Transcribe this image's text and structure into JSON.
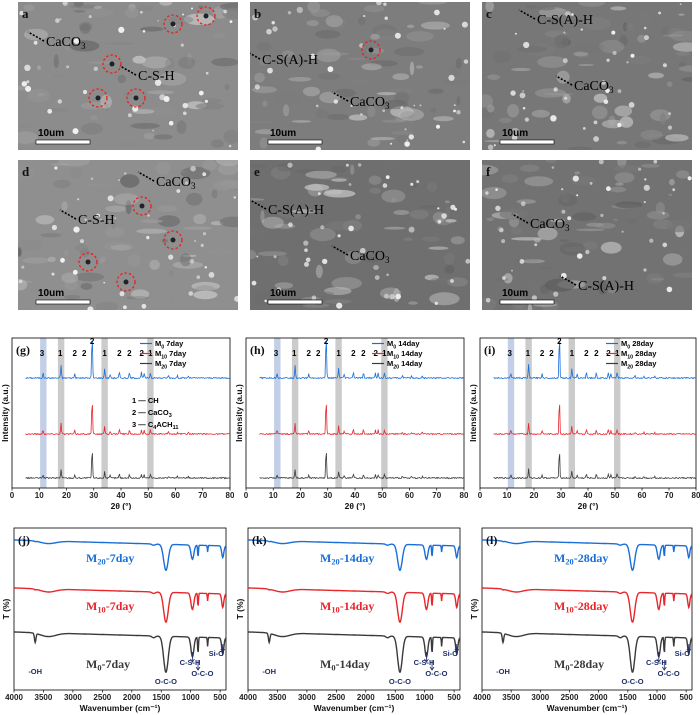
{
  "sem": [
    {
      "letter": "a",
      "scale": "10um",
      "labels": [
        "CaCO3",
        "C-S-H"
      ]
    },
    {
      "letter": "b",
      "scale": "10um",
      "labels": [
        "C-S(A)-H",
        "CaCO3"
      ]
    },
    {
      "letter": "c",
      "scale": "10um",
      "labels": [
        "C-S(A)-H",
        "CaCO3"
      ]
    },
    {
      "letter": "d",
      "scale": "10um",
      "labels": [
        "C-S-H",
        "CaCO3"
      ]
    },
    {
      "letter": "e",
      "scale": "10um",
      "labels": [
        "C-S(A)-H",
        "CaCO3"
      ]
    },
    {
      "letter": "f",
      "scale": "10um",
      "labels": [
        "CaCO3",
        "C-S(A)-H"
      ]
    }
  ],
  "colors": {
    "m0": "#1a6ed8",
    "m10": "#e8262b",
    "m20": "#3a3a3a",
    "band_blue": "#b7c7e3",
    "band_gray": "#c2c2c2"
  },
  "xrd": {
    "xlabel": "2θ (°)",
    "ylabel": "Intensity (a.u.)",
    "xlim": [
      0,
      80
    ],
    "xticks": [
      0,
      10,
      20,
      30,
      40,
      50,
      60,
      70,
      80
    ],
    "bands": [
      {
        "x": 11.5,
        "tone": "blue"
      },
      {
        "x": 18.0,
        "tone": "gray"
      },
      {
        "x": 34.0,
        "tone": "gray"
      },
      {
        "x": 50.8,
        "tone": "gray"
      }
    ],
    "peak_labels": [
      {
        "x": 11.0,
        "t": "3"
      },
      {
        "x": 17.7,
        "t": "1"
      },
      {
        "x": 23.0,
        "t": "2"
      },
      {
        "x": 26.5,
        "t": "2"
      },
      {
        "x": 29.4,
        "t": "2"
      },
      {
        "x": 34.0,
        "t": "1"
      },
      {
        "x": 39.4,
        "t": "2"
      },
      {
        "x": 43.1,
        "t": "2"
      },
      {
        "x": 47.6,
        "t": "2"
      },
      {
        "x": 50.8,
        "t": "1"
      }
    ],
    "peaks": [
      [
        11.4,
        0.12
      ],
      [
        18.0,
        0.3
      ],
      [
        23.0,
        0.1
      ],
      [
        29.4,
        1.0
      ],
      [
        34.0,
        0.22
      ],
      [
        36.0,
        0.08
      ],
      [
        39.4,
        0.14
      ],
      [
        43.1,
        0.12
      ],
      [
        47.5,
        0.13
      ],
      [
        48.5,
        0.11
      ],
      [
        50.8,
        0.12
      ],
      [
        57.4,
        0.06
      ],
      [
        60.7,
        0.05
      ],
      [
        64.7,
        0.05
      ]
    ],
    "panels": [
      {
        "letter": "(g)",
        "series": [
          {
            "name": "M0 7day",
            "sub": "0",
            "tail": " 7day"
          },
          {
            "name": "M10 7day",
            "sub": "10",
            "tail": " 7day"
          },
          {
            "name": "M20 7day",
            "sub": "20",
            "tail": " 7day"
          }
        ],
        "key": [
          "1 — CH",
          "2 — CaCO3",
          "3 — C4ACH11"
        ]
      },
      {
        "letter": "(h)",
        "series": [
          {
            "name": "M0 14day",
            "sub": "0",
            "tail": " 14day"
          },
          {
            "name": "M10 14day",
            "sub": "10",
            "tail": " 14day"
          },
          {
            "name": "M20 14day",
            "sub": "20",
            "tail": " 14day"
          }
        ]
      },
      {
        "letter": "(i)",
        "series": [
          {
            "name": "M0 28day",
            "sub": "0",
            "tail": " 28day"
          },
          {
            "name": "M10 28day",
            "sub": "10",
            "tail": " 28day"
          },
          {
            "name": "M20 28day",
            "sub": "20",
            "tail": " 28day"
          }
        ]
      }
    ]
  },
  "ftir": {
    "xlabel": "Wavenumber (cm⁻¹)",
    "ylabel": "T (%)",
    "xlim": [
      4000,
      400
    ],
    "xticks": [
      4000,
      3500,
      3000,
      2500,
      2000,
      1500,
      1000,
      500
    ],
    "annotations": [
      "-OH",
      "O-C-O",
      "C-S-H",
      "O-C-O",
      "Si-O"
    ],
    "panels": [
      {
        "letter": "(j)",
        "labels": [
          "M20-7day",
          "M10-7day",
          "M0-7day"
        ]
      },
      {
        "letter": "(k)",
        "labels": [
          "M20-14day",
          "M10-14day",
          "M0-14day"
        ]
      },
      {
        "letter": "(l)",
        "labels": [
          "M20-28day",
          "M10-28day",
          "M0-28day"
        ]
      }
    ]
  },
  "chart_data": [
    {
      "type": "line",
      "title": "(g)",
      "xlabel": "2θ (°)",
      "ylabel": "Intensity (a.u.)",
      "xlim": [
        0,
        80
      ],
      "series": [
        {
          "name": "M0 7day"
        },
        {
          "name": "M10 7day"
        },
        {
          "name": "M20 7day"
        }
      ],
      "peaks_2theta": [
        11.4,
        18.0,
        23.0,
        29.4,
        34.0,
        39.4,
        43.1,
        47.5,
        50.8
      ]
    },
    {
      "type": "line",
      "title": "(h)",
      "xlabel": "2θ (°)",
      "ylabel": "Intensity (a.u.)",
      "xlim": [
        0,
        80
      ],
      "series": [
        {
          "name": "M0 14day"
        },
        {
          "name": "M10 14day"
        },
        {
          "name": "M20 14day"
        }
      ]
    },
    {
      "type": "line",
      "title": "(i)",
      "xlabel": "2θ (°)",
      "ylabel": "Intensity (a.u.)",
      "xlim": [
        0,
        80
      ],
      "series": [
        {
          "name": "M0 28day"
        },
        {
          "name": "M10 28day"
        },
        {
          "name": "M20 28day"
        }
      ]
    },
    {
      "type": "line",
      "title": "(j)",
      "xlabel": "Wavenumber (cm⁻¹)",
      "ylabel": "T (%)",
      "xlim": [
        4000,
        400
      ],
      "series": [
        {
          "name": "M20-7day"
        },
        {
          "name": "M10-7day"
        },
        {
          "name": "M0-7day"
        }
      ],
      "bands_cm1": [
        3640,
        1420,
        970,
        875,
        455
      ]
    },
    {
      "type": "line",
      "title": "(k)",
      "xlabel": "Wavenumber (cm⁻¹)",
      "ylabel": "T (%)",
      "xlim": [
        4000,
        400
      ],
      "series": [
        {
          "name": "M20-14day"
        },
        {
          "name": "M10-14day"
        },
        {
          "name": "M0-14day"
        }
      ]
    },
    {
      "type": "line",
      "title": "(l)",
      "xlabel": "Wavenumber (cm⁻¹)",
      "ylabel": "T (%)",
      "xlim": [
        4000,
        400
      ],
      "series": [
        {
          "name": "M20-28day"
        },
        {
          "name": "M10-28day"
        },
        {
          "name": "M0-28day"
        }
      ]
    }
  ]
}
